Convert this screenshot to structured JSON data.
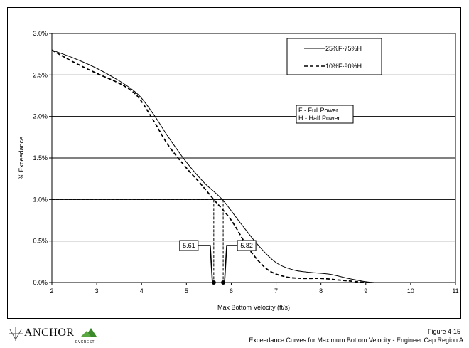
{
  "chart_data": {
    "type": "line",
    "title": "",
    "xlabel": "Max Bottom Velocity (ft/s)",
    "ylabel": "% Exceedance",
    "xlim": [
      2,
      11
    ],
    "ylim": [
      0,
      3.0
    ],
    "xticks": [
      "2",
      "3",
      "4",
      "5",
      "6",
      "7",
      "8",
      "9",
      "10",
      "11"
    ],
    "yticks": [
      "0.0%",
      "0.5%",
      "1.0%",
      "1.5%",
      "2.0%",
      "2.5%",
      "3.0%"
    ],
    "grid": "horizontal",
    "legend_position": "top-right",
    "series": [
      {
        "name": "25%F-75%H",
        "style": "solid",
        "x": [
          2.0,
          2.5,
          3.0,
          3.5,
          3.8,
          4.0,
          4.3,
          4.6,
          5.0,
          5.4,
          5.8,
          6.2,
          6.6,
          7.0,
          7.4,
          7.8,
          8.2,
          8.6,
          9.0,
          9.2
        ],
        "y": [
          2.8,
          2.7,
          2.58,
          2.43,
          2.32,
          2.22,
          2.0,
          1.75,
          1.45,
          1.2,
          1.0,
          0.72,
          0.45,
          0.24,
          0.15,
          0.12,
          0.1,
          0.05,
          0.01,
          0.0
        ]
      },
      {
        "name": "10%F-90%H",
        "style": "dashed",
        "x": [
          2.0,
          2.5,
          3.0,
          3.5,
          3.8,
          4.0,
          4.3,
          4.6,
          5.0,
          5.3,
          5.61,
          6.0,
          6.4,
          6.8,
          7.2,
          7.6,
          8.0,
          8.4,
          8.8,
          9.0
        ],
        "y": [
          2.8,
          2.65,
          2.52,
          2.4,
          2.3,
          2.18,
          1.92,
          1.65,
          1.38,
          1.2,
          1.0,
          0.75,
          0.4,
          0.16,
          0.07,
          0.05,
          0.05,
          0.03,
          0.01,
          0.0
        ]
      }
    ],
    "reference_lines": {
      "y_level": 1.0,
      "x_values": [
        5.61,
        5.82
      ]
    },
    "annotations": {
      "value_labels": [
        "5.61",
        "5.82"
      ],
      "note_lines": [
        "F - Full Power",
        "H - Half Power"
      ]
    }
  },
  "footer": {
    "logo_text": "ANCHOR",
    "logo_subtext": "EVCREST",
    "figure_number": "Figure 4-15",
    "caption": "Exceedance Curves for Maximum Bottom Velocity -  Engineer Cap Region A"
  },
  "colors": {
    "line": "#000000",
    "grid": "#000000",
    "logo_green": "#3a8a2a"
  }
}
